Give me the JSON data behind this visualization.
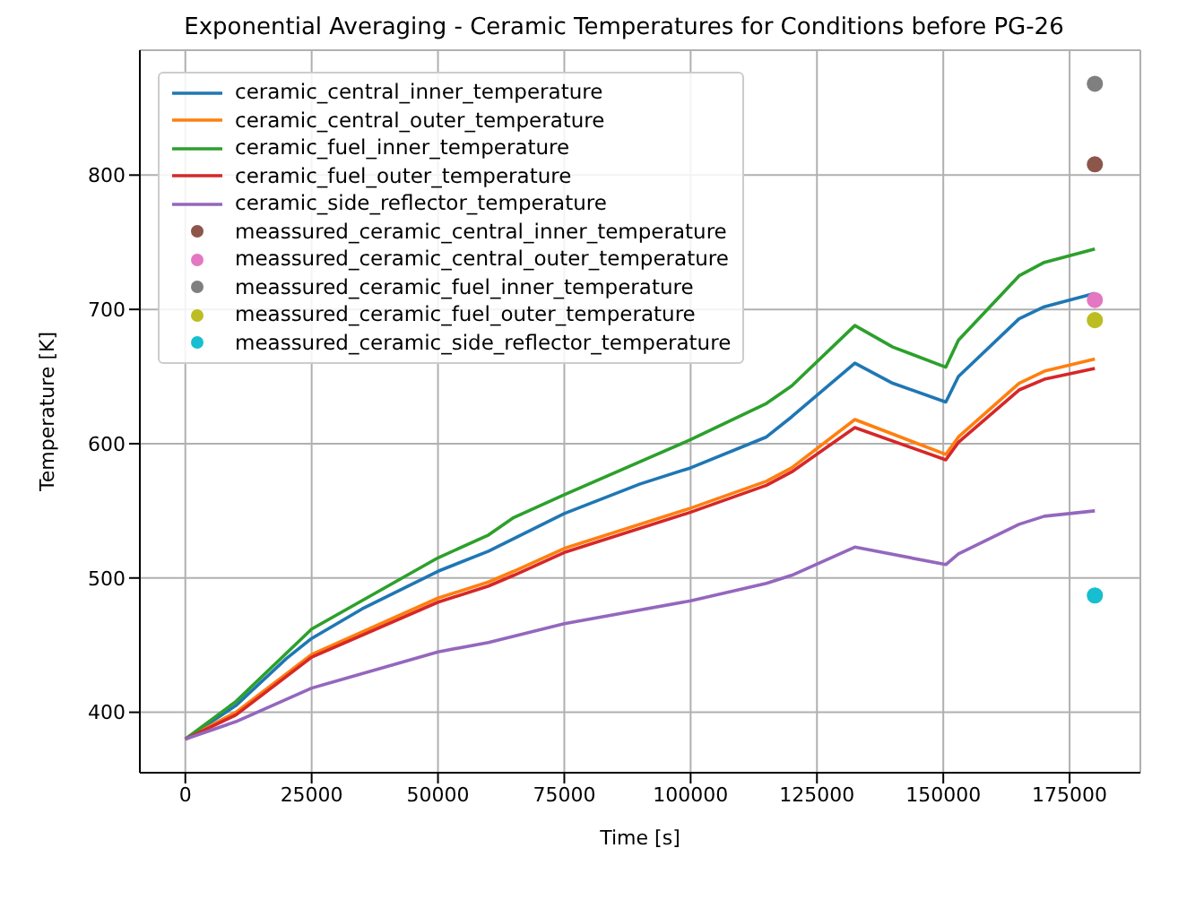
{
  "chart_data": {
    "type": "line",
    "title": "Exponential Averaging - Ceramic Temperatures for Conditions before PG-26",
    "xlabel": "Time [s]",
    "ylabel": "Temperature [K]",
    "xlim": [
      -9000,
      189000
    ],
    "xticks": [
      0,
      25000,
      50000,
      75000,
      100000,
      125000,
      150000,
      175000
    ],
    "ylim": [
      355,
      893
    ],
    "yticks": [
      400,
      500,
      600,
      700,
      800
    ],
    "grid": true,
    "legend": "top left",
    "line_style": "solid",
    "series": [
      {
        "name": "ceramic_central_inner_temperature",
        "color": "#1f77b4",
        "marker": "none",
        "x": [
          0,
          10000,
          20000,
          25000,
          35000,
          50000,
          60000,
          75000,
          90000,
          100000,
          115000,
          120000,
          132500,
          140000,
          150500,
          153000,
          165000,
          170000,
          180000
        ],
        "values": [
          380,
          405,
          440,
          455,
          477,
          505,
          520,
          548,
          570,
          582,
          605,
          620,
          660,
          645,
          631,
          650,
          693,
          702,
          712
        ]
      },
      {
        "name": "ceramic_central_outer_temperature",
        "color": "#ff7f0e",
        "marker": "none",
        "x": [
          0,
          10000,
          25000,
          50000,
          60000,
          65000,
          75000,
          100000,
          115000,
          120000,
          132500,
          150500,
          153000,
          165000,
          170000,
          180000
        ],
        "values": [
          380,
          400,
          443,
          485,
          497,
          505,
          522,
          552,
          572,
          582,
          618,
          592,
          605,
          645,
          654,
          663
        ]
      },
      {
        "name": "ceramic_fuel_inner_temperature",
        "color": "#2ca02c",
        "marker": "none",
        "x": [
          0,
          10000,
          25000,
          50000,
          60000,
          65000,
          75000,
          100000,
          115000,
          120000,
          132500,
          140000,
          150500,
          153000,
          165000,
          170000,
          180000
        ],
        "values": [
          380,
          408,
          462,
          515,
          532,
          545,
          562,
          603,
          630,
          643,
          688,
          672,
          657,
          677,
          725,
          735,
          745
        ]
      },
      {
        "name": "ceramic_fuel_outer_temperature",
        "color": "#d62728",
        "marker": "none",
        "x": [
          0,
          10000,
          25000,
          50000,
          60000,
          65000,
          75000,
          100000,
          115000,
          120000,
          132500,
          150500,
          153000,
          165000,
          170000,
          180000
        ],
        "values": [
          380,
          398,
          441,
          482,
          494,
          502,
          519,
          549,
          569,
          579,
          612,
          588,
          601,
          640,
          648,
          656
        ]
      },
      {
        "name": "ceramic_side_reflector_temperature",
        "color": "#9467bd",
        "marker": "none",
        "x": [
          0,
          10000,
          25000,
          50000,
          60000,
          75000,
          100000,
          115000,
          120000,
          132500,
          150500,
          153000,
          165000,
          170000,
          180000
        ],
        "values": [
          380,
          393,
          418,
          445,
          452,
          466,
          483,
          496,
          502,
          523,
          510,
          518,
          540,
          546,
          550
        ]
      },
      {
        "type": "scatter",
        "name": "meassured_ceramic_central_inner_temperature",
        "color": "#8c564b",
        "marker": "circle",
        "x": [
          180000
        ],
        "values": [
          808
        ]
      },
      {
        "type": "scatter",
        "name": "meassured_ceramic_central_outer_temperature",
        "color": "#e377c2",
        "marker": "circle",
        "x": [
          180000
        ],
        "values": [
          707
        ]
      },
      {
        "type": "scatter",
        "name": "meassured_ceramic_fuel_inner_temperature",
        "color": "#7f7f7f",
        "marker": "circle",
        "x": [
          180000
        ],
        "values": [
          868
        ]
      },
      {
        "type": "scatter",
        "name": "meassured_ceramic_fuel_outer_temperature",
        "color": "#bcbd22",
        "marker": "circle",
        "x": [
          180000
        ],
        "values": [
          692
        ]
      },
      {
        "type": "scatter",
        "name": "meassured_ceramic_side_reflector_temperature",
        "color": "#17becf",
        "marker": "circle",
        "x": [
          180000
        ],
        "values": [
          487
        ]
      }
    ]
  }
}
